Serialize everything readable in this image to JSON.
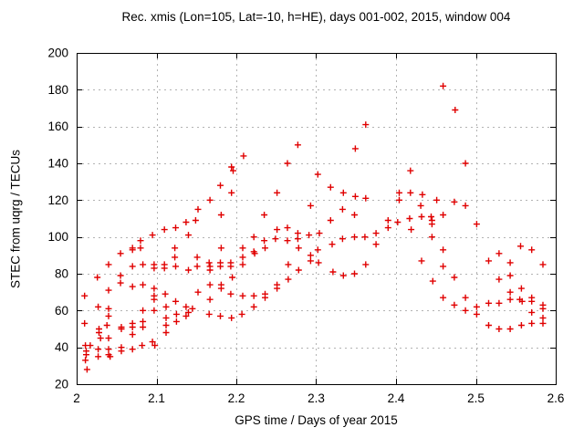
{
  "chart_data": {
    "type": "scatter",
    "title": "Rec. xmis (Lon=105, Lat=-10, h=HE), days 001-002, 2015, window 004",
    "xlabel": "GPS time / Days of year 2015",
    "ylabel": "STEC from uqrg / TECUs",
    "xlim": [
      2.0,
      2.6
    ],
    "ylim": [
      20,
      200
    ],
    "xtick_values": [
      2.0,
      2.1,
      2.2,
      2.3,
      2.4,
      2.5,
      2.6
    ],
    "xtick_labels": [
      "2",
      "2.1",
      "2.2",
      "2.3",
      "2.4",
      "2.5",
      "2.6"
    ],
    "ytick_values": [
      20,
      40,
      60,
      80,
      100,
      120,
      140,
      160,
      180,
      200
    ],
    "ytick_labels": [
      "20",
      "40",
      "60",
      "80",
      "100",
      "120",
      "140",
      "160",
      "180",
      "200"
    ],
    "grid": true,
    "legend_position": "none",
    "marker": {
      "shape": "plus",
      "color": "#e00000",
      "size": 7
    },
    "grid_color": "#b3b3b3",
    "axis_color": "#000000",
    "points": [
      [
        2.01,
        68
      ],
      [
        2.01,
        53
      ],
      [
        2.011,
        41
      ],
      [
        2.011,
        33
      ],
      [
        2.012,
        38
      ],
      [
        2.012,
        36
      ],
      [
        2.013,
        28
      ],
      [
        2.017,
        41
      ],
      [
        2.026,
        78
      ],
      [
        2.027,
        62
      ],
      [
        2.028,
        50
      ],
      [
        2.028,
        48
      ],
      [
        2.03,
        45
      ],
      [
        2.027,
        39
      ],
      [
        2.027,
        35
      ],
      [
        2.04,
        85
      ],
      [
        2.04,
        71
      ],
      [
        2.04,
        61
      ],
      [
        2.04,
        57
      ],
      [
        2.038,
        52
      ],
      [
        2.04,
        45
      ],
      [
        2.04,
        39
      ],
      [
        2.04,
        36
      ],
      [
        2.042,
        35
      ],
      [
        2.055,
        91
      ],
      [
        2.055,
        79
      ],
      [
        2.055,
        75
      ],
      [
        2.056,
        51
      ],
      [
        2.056,
        50
      ],
      [
        2.056,
        40
      ],
      [
        2.056,
        38
      ],
      [
        2.07,
        94
      ],
      [
        2.07,
        93
      ],
      [
        2.07,
        84
      ],
      [
        2.07,
        73
      ],
      [
        2.07,
        53
      ],
      [
        2.07,
        51
      ],
      [
        2.07,
        47
      ],
      [
        2.07,
        39
      ],
      [
        2.08,
        98
      ],
      [
        2.08,
        94
      ],
      [
        2.083,
        85
      ],
      [
        2.083,
        74
      ],
      [
        2.083,
        60
      ],
      [
        2.083,
        54
      ],
      [
        2.083,
        51
      ],
      [
        2.082,
        41
      ],
      [
        2.095,
        101
      ],
      [
        2.097,
        85
      ],
      [
        2.097,
        83
      ],
      [
        2.097,
        72
      ],
      [
        2.097,
        68
      ],
      [
        2.097,
        66
      ],
      [
        2.097,
        60
      ],
      [
        2.095,
        43
      ],
      [
        2.098,
        41
      ],
      [
        2.11,
        104
      ],
      [
        2.11,
        85
      ],
      [
        2.11,
        83
      ],
      [
        2.111,
        69
      ],
      [
        2.112,
        62
      ],
      [
        2.112,
        56
      ],
      [
        2.112,
        52
      ],
      [
        2.112,
        48
      ],
      [
        2.124,
        105
      ],
      [
        2.123,
        94
      ],
      [
        2.123,
        89
      ],
      [
        2.124,
        84
      ],
      [
        2.124,
        65
      ],
      [
        2.125,
        58
      ],
      [
        2.125,
        54
      ],
      [
        2.137,
        108
      ],
      [
        2.14,
        101
      ],
      [
        2.14,
        82
      ],
      [
        2.137,
        62
      ],
      [
        2.14,
        59
      ],
      [
        2.137,
        57
      ],
      [
        2.145,
        61
      ],
      [
        2.149,
        109
      ],
      [
        2.152,
        115
      ],
      [
        2.151,
        89
      ],
      [
        2.151,
        84
      ],
      [
        2.152,
        70
      ],
      [
        2.167,
        120
      ],
      [
        2.166,
        86
      ],
      [
        2.167,
        84
      ],
      [
        2.167,
        82
      ],
      [
        2.167,
        74
      ],
      [
        2.167,
        66
      ],
      [
        2.166,
        58
      ],
      [
        2.18,
        128
      ],
      [
        2.181,
        112
      ],
      [
        2.181,
        94
      ],
      [
        2.18,
        86
      ],
      [
        2.18,
        84
      ],
      [
        2.181,
        74
      ],
      [
        2.181,
        72
      ],
      [
        2.18,
        57
      ],
      [
        2.194,
        138
      ],
      [
        2.196,
        136
      ],
      [
        2.194,
        124
      ],
      [
        2.193,
        86
      ],
      [
        2.193,
        84
      ],
      [
        2.195,
        78
      ],
      [
        2.193,
        69
      ],
      [
        2.194,
        56
      ],
      [
        2.209,
        144
      ],
      [
        2.208,
        94
      ],
      [
        2.208,
        89
      ],
      [
        2.208,
        85
      ],
      [
        2.208,
        68
      ],
      [
        2.207,
        58
      ],
      [
        2.222,
        100
      ],
      [
        2.222,
        92
      ],
      [
        2.223,
        91
      ],
      [
        2.222,
        68
      ],
      [
        2.222,
        62
      ],
      [
        2.235,
        112
      ],
      [
        2.235,
        98
      ],
      [
        2.236,
        94
      ],
      [
        2.236,
        69
      ],
      [
        2.236,
        67
      ],
      [
        2.251,
        124
      ],
      [
        2.251,
        104
      ],
      [
        2.249,
        99
      ],
      [
        2.251,
        74
      ],
      [
        2.251,
        72
      ],
      [
        2.264,
        140
      ],
      [
        2.264,
        105
      ],
      [
        2.264,
        98
      ],
      [
        2.265,
        85
      ],
      [
        2.265,
        77
      ],
      [
        2.277,
        150
      ],
      [
        2.277,
        102
      ],
      [
        2.277,
        99
      ],
      [
        2.278,
        94
      ],
      [
        2.278,
        82
      ],
      [
        2.293,
        117
      ],
      [
        2.291,
        101
      ],
      [
        2.293,
        90
      ],
      [
        2.293,
        87
      ],
      [
        2.302,
        134
      ],
      [
        2.304,
        102
      ],
      [
        2.302,
        93
      ],
      [
        2.303,
        86
      ],
      [
        2.318,
        127
      ],
      [
        2.318,
        109
      ],
      [
        2.32,
        96
      ],
      [
        2.321,
        81
      ],
      [
        2.334,
        124
      ],
      [
        2.333,
        115
      ],
      [
        2.333,
        99
      ],
      [
        2.334,
        79
      ],
      [
        2.349,
        148
      ],
      [
        2.349,
        122
      ],
      [
        2.348,
        112
      ],
      [
        2.348,
        100
      ],
      [
        2.348,
        80
      ],
      [
        2.362,
        161
      ],
      [
        2.362,
        121
      ],
      [
        2.361,
        100
      ],
      [
        2.362,
        85
      ],
      [
        2.375,
        102
      ],
      [
        2.375,
        96
      ],
      [
        2.39,
        109
      ],
      [
        2.39,
        105
      ],
      [
        2.404,
        124
      ],
      [
        2.404,
        120
      ],
      [
        2.402,
        108
      ],
      [
        2.418,
        136
      ],
      [
        2.418,
        124
      ],
      [
        2.417,
        110
      ],
      [
        2.419,
        104
      ],
      [
        2.433,
        123
      ],
      [
        2.431,
        117
      ],
      [
        2.432,
        111
      ],
      [
        2.432,
        87
      ],
      [
        2.444,
        111
      ],
      [
        2.445,
        109
      ],
      [
        2.445,
        107
      ],
      [
        2.445,
        100
      ],
      [
        2.446,
        76
      ],
      [
        2.459,
        182
      ],
      [
        2.451,
        120
      ],
      [
        2.459,
        112
      ],
      [
        2.459,
        93
      ],
      [
        2.459,
        84
      ],
      [
        2.459,
        67
      ],
      [
        2.474,
        169
      ],
      [
        2.473,
        119
      ],
      [
        2.473,
        78
      ],
      [
        2.473,
        63
      ],
      [
        2.487,
        140
      ],
      [
        2.487,
        117
      ],
      [
        2.487,
        67
      ],
      [
        2.487,
        60
      ],
      [
        2.501,
        107
      ],
      [
        2.501,
        62
      ],
      [
        2.501,
        58
      ],
      [
        2.516,
        87
      ],
      [
        2.516,
        64
      ],
      [
        2.516,
        52
      ],
      [
        2.529,
        91
      ],
      [
        2.529,
        77
      ],
      [
        2.529,
        64
      ],
      [
        2.529,
        50
      ],
      [
        2.543,
        86
      ],
      [
        2.543,
        79
      ],
      [
        2.543,
        70
      ],
      [
        2.543,
        66
      ],
      [
        2.543,
        50
      ],
      [
        2.556,
        95
      ],
      [
        2.557,
        72
      ],
      [
        2.555,
        66
      ],
      [
        2.558,
        65
      ],
      [
        2.557,
        52
      ],
      [
        2.57,
        93
      ],
      [
        2.57,
        67
      ],
      [
        2.57,
        65
      ],
      [
        2.57,
        59
      ],
      [
        2.57,
        53
      ],
      [
        2.584,
        85
      ],
      [
        2.584,
        63
      ],
      [
        2.584,
        61
      ],
      [
        2.584,
        56
      ],
      [
        2.584,
        53
      ]
    ]
  }
}
